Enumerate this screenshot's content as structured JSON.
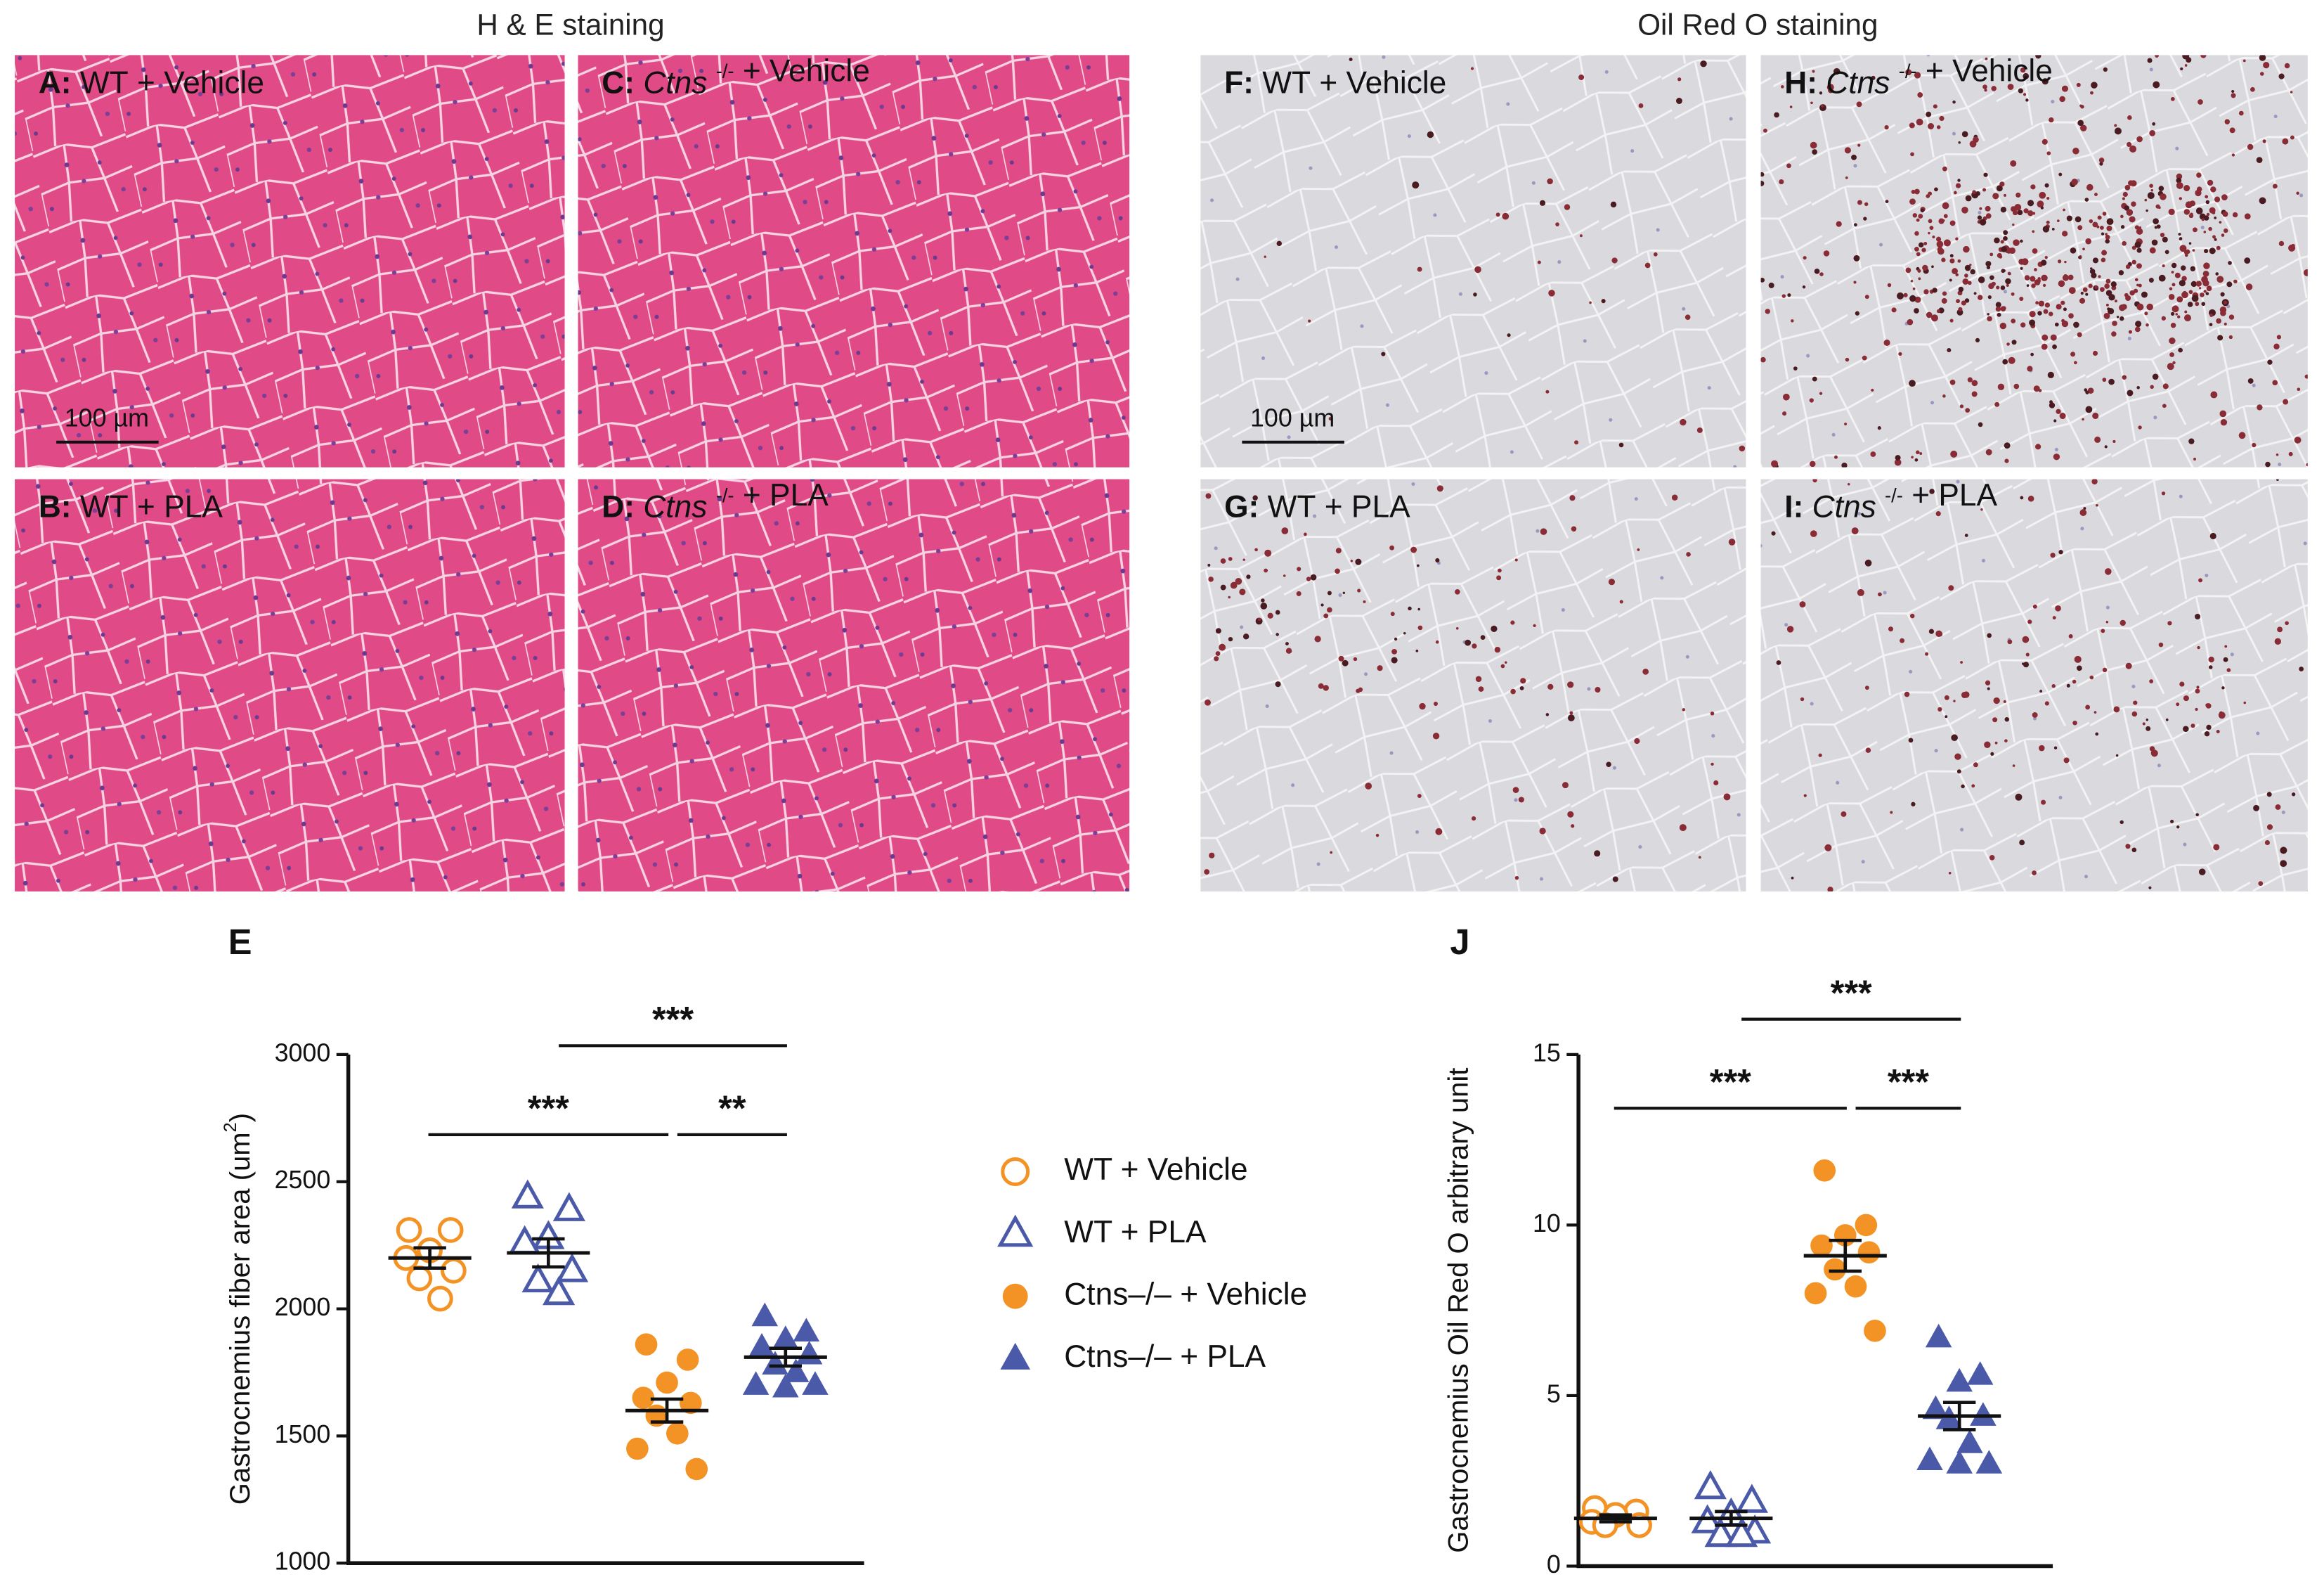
{
  "figure": {
    "he_title": "H & E staining",
    "oro_title": "Oil Red O staining",
    "scale_bar": "100 µm",
    "panels": [
      {
        "letter": "A:",
        "genotype": "WT",
        "treatment": "+ Vehicle"
      },
      {
        "letter": "B:",
        "genotype": "WT",
        "treatment": "+ PLA"
      },
      {
        "letter": "C:",
        "genotype": "Ctns",
        "sup": "-/-",
        "treatment": "+ Vehicle"
      },
      {
        "letter": "D:",
        "genotype": "Ctns",
        "sup": "-/-",
        "treatment": "+ PLA"
      },
      {
        "letter": "F:",
        "genotype": "WT",
        "treatment": "+ Vehicle"
      },
      {
        "letter": "G:",
        "genotype": "WT",
        "treatment": "+ PLA"
      },
      {
        "letter": "H:",
        "genotype": "Ctns",
        "sup": "-/-",
        "treatment": "+ Vehicle"
      },
      {
        "letter": "I:",
        "genotype": "Ctns",
        "sup": "-/-",
        "treatment": "+ PLA"
      }
    ]
  },
  "chart_data": [
    {
      "type": "scatter",
      "panel_label": "E",
      "ylabel_parts": [
        "Gastrocnemius fiber area (um",
        "2",
        ")"
      ],
      "ylim": [
        1000,
        3000
      ],
      "yticks": [
        1000,
        1500,
        2000,
        2500,
        3000
      ],
      "legend": true,
      "series": [
        {
          "name": "WT + Vehicle",
          "color": "#f39325",
          "marker": "circle-open",
          "values": [
            2310,
            2310,
            2230,
            2200,
            2150,
            2120,
            2040
          ],
          "mean": 2200,
          "sem": 40
        },
        {
          "name": "WT + PLA",
          "color": "#4a5aa8",
          "marker": "triangle-open",
          "values": [
            2440,
            2390,
            2280,
            2260,
            2150,
            2110,
            2060
          ],
          "mean": 2220,
          "sem": 55
        },
        {
          "name": "Ctns–/– + Vehicle",
          "color": "#f39325",
          "marker": "circle",
          "values": [
            1860,
            1800,
            1710,
            1650,
            1630,
            1580,
            1510,
            1450,
            1370
          ],
          "mean": 1600,
          "sem": 45
        },
        {
          "name": "Ctns–/– + PLA",
          "color": "#4a5aa8",
          "marker": "triangle",
          "values": [
            1970,
            1910,
            1880,
            1850,
            1820,
            1780,
            1750,
            1700,
            1700,
            1690
          ],
          "mean": 1810,
          "sem": 35
        }
      ],
      "annotations": [
        {
          "text": "***",
          "from": 0,
          "to": 2
        },
        {
          "text": "**",
          "from": 2,
          "to": 3
        },
        {
          "text": "***",
          "from": 1,
          "to": 3
        }
      ]
    },
    {
      "type": "scatter",
      "panel_label": "J",
      "ylabel_parts": [
        "Gastrocnemius Oil Red O arbitrary unit"
      ],
      "ylim": [
        0,
        15
      ],
      "yticks": [
        0,
        5,
        10,
        15
      ],
      "legend": false,
      "series": [
        {
          "color": "#f39325",
          "marker": "circle-open",
          "values": [
            1.7,
            1.6,
            1.5,
            1.3,
            1.2,
            1.2
          ],
          "mean": 1.4,
          "sem": 0.1
        },
        {
          "color": "#4a5aa8",
          "marker": "triangle-open",
          "values": [
            2.3,
            1.9,
            1.5,
            1.3,
            1.0,
            0.9,
            0.9
          ],
          "mean": 1.4,
          "sem": 0.2
        },
        {
          "color": "#f39325",
          "marker": "circle",
          "values": [
            11.6,
            10.0,
            9.7,
            9.4,
            9.2,
            8.7,
            8.2,
            8.0,
            6.9
          ],
          "mean": 9.1,
          "sem": 0.45
        },
        {
          "color": "#4a5aa8",
          "marker": "triangle",
          "values": [
            6.7,
            5.6,
            5.4,
            4.6,
            4.4,
            4.3,
            3.6,
            3.1,
            3.0,
            3.0
          ],
          "mean": 4.4,
          "sem": 0.4
        }
      ],
      "annotations": [
        {
          "text": "***",
          "from": 0,
          "to": 2
        },
        {
          "text": "***",
          "from": 2,
          "to": 3
        },
        {
          "text": "***",
          "from": 1,
          "to": 3
        }
      ]
    }
  ]
}
